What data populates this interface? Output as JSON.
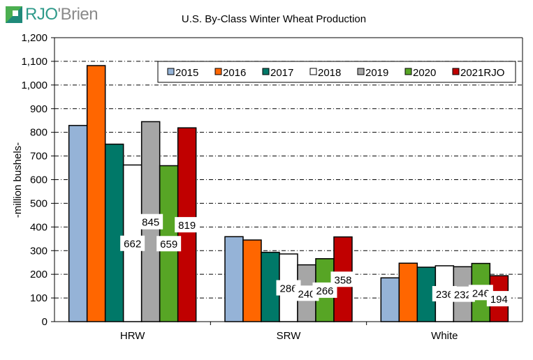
{
  "brand": {
    "logo_prefix": "RJO",
    "logo_suffix": "'Brien"
  },
  "chart_data": {
    "type": "bar",
    "title": "U.S. By-Class Winter Wheat Production",
    "xlabel": "",
    "ylabel": "-million bushels-",
    "ylim": [
      0,
      1200
    ],
    "yticks": [
      0,
      100,
      200,
      300,
      400,
      500,
      600,
      700,
      800,
      900,
      1000,
      1100,
      1200
    ],
    "ytick_labels": [
      "0",
      "100",
      "200",
      "300",
      "400",
      "500",
      "600",
      "700",
      "800",
      "900",
      "1,000",
      "1,100",
      "1,200"
    ],
    "grid": true,
    "legend_position": "top-right",
    "categories": [
      "HRW",
      "SRW",
      "White"
    ],
    "series": [
      {
        "name": "2015",
        "color": "#95b3d7",
        "values": [
          829,
          359,
          185
        ],
        "labeled": [
          false,
          false,
          false
        ]
      },
      {
        "name": "2016",
        "color": "#ff6600",
        "values": [
          1082,
          345,
          247
        ],
        "labeled": [
          false,
          false,
          false
        ]
      },
      {
        "name": "2017",
        "color": "#007868",
        "values": [
          750,
          293,
          230
        ],
        "labeled": [
          false,
          false,
          false
        ]
      },
      {
        "name": "2018",
        "color": "#ffffff",
        "values": [
          662,
          286,
          236
        ],
        "labeled": [
          true,
          true,
          true
        ]
      },
      {
        "name": "2019",
        "color": "#a6a6a6",
        "values": [
          845,
          240,
          232
        ],
        "labeled": [
          true,
          true,
          true
        ]
      },
      {
        "name": "2020",
        "color": "#57a525",
        "values": [
          659,
          266,
          246
        ],
        "labeled": [
          true,
          true,
          true
        ]
      },
      {
        "name": "2021RJO",
        "color": "#c00000",
        "values": [
          819,
          358,
          194
        ],
        "labeled": [
          true,
          true,
          true
        ]
      }
    ]
  }
}
